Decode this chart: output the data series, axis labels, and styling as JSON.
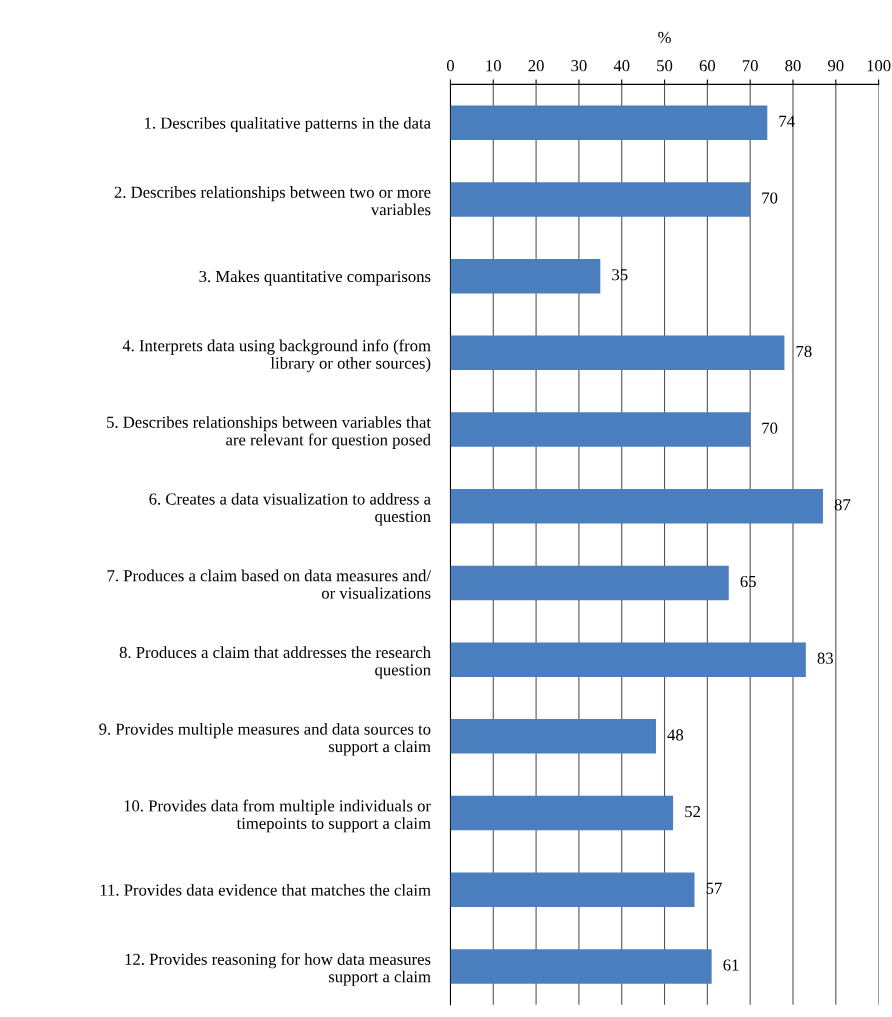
{
  "chart_data": {
    "type": "bar",
    "orientation": "horizontal",
    "xlabel": "%",
    "categories": [
      "1. Describes qualitative patterns in the data",
      "2. Describes relationships between two or more\nvariables",
      "3. Makes quantitative comparisons",
      "4. Interprets data using background info (from\nlibrary or other sources)",
      "5. Describes relationships between variables that\nare relevant for question posed",
      "6. Creates a data visualization to address a\nquestion",
      "7. Produces a claim based on data measures and/\nor visualizations",
      "8. Produces a claim that addresses the research\nquestion",
      "9. Provides multiple measures and data sources to\nsupport a claim",
      "10. Provides data from multiple individuals or\ntimepoints to support a claim",
      "11. Provides data evidence that matches the claim",
      "12. Provides reasoning for how data measures\nsupport a claim"
    ],
    "values": [
      74,
      70,
      35,
      78,
      70,
      87,
      65,
      83,
      48,
      52,
      57,
      61
    ],
    "color": "#4a7ebf",
    "xlim": [
      0,
      100
    ],
    "xticks": [
      0,
      10,
      20,
      30,
      40,
      50,
      60,
      70,
      80,
      90,
      100
    ],
    "grid": "x",
    "data_labels": true
  }
}
